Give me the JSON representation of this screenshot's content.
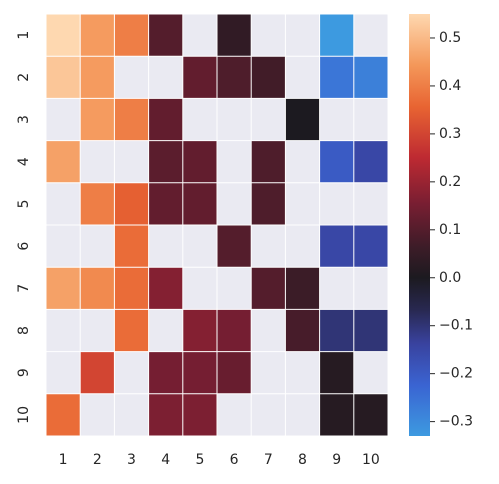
{
  "chart_data": {
    "type": "heatmap",
    "title": "",
    "xlabel": "",
    "ylabel": "",
    "x_categories": [
      "1",
      "2",
      "3",
      "4",
      "5",
      "6",
      "7",
      "8",
      "9",
      "10"
    ],
    "y_categories": [
      "1",
      "2",
      "3",
      "4",
      "5",
      "6",
      "7",
      "8",
      "9",
      "10"
    ],
    "values": [
      [
        0.55,
        0.45,
        0.4,
        0.1,
        null,
        0.04,
        null,
        null,
        -0.33,
        null
      ],
      [
        0.52,
        0.45,
        null,
        null,
        0.12,
        0.09,
        0.07,
        null,
        -0.26,
        -0.28
      ],
      [
        null,
        0.45,
        0.4,
        0.12,
        null,
        null,
        null,
        0.0,
        null,
        null
      ],
      [
        0.46,
        null,
        null,
        0.11,
        0.12,
        null,
        0.09,
        null,
        -0.2,
        -0.15
      ],
      [
        null,
        0.4,
        0.35,
        0.12,
        0.12,
        null,
        0.09,
        null,
        null,
        null
      ],
      [
        null,
        null,
        0.37,
        null,
        null,
        0.1,
        null,
        null,
        -0.15,
        -0.15
      ],
      [
        0.46,
        0.42,
        0.37,
        0.17,
        null,
        null,
        0.1,
        0.06,
        null,
        null
      ],
      [
        null,
        null,
        0.37,
        null,
        0.17,
        0.15,
        null,
        0.08,
        -0.1,
        -0.1
      ],
      [
        null,
        0.3,
        null,
        0.15,
        0.15,
        0.13,
        null,
        null,
        0.02,
        null
      ],
      [
        0.37,
        null,
        null,
        0.16,
        0.16,
        null,
        null,
        null,
        0.02,
        0.02
      ]
    ],
    "colorbar": {
      "min": -0.33,
      "max": 0.55,
      "ticks": [
        0.5,
        0.4,
        0.3,
        0.2,
        0.1,
        0.0,
        -0.1,
        -0.2,
        -0.3
      ],
      "tick_labels": [
        "0.5",
        "0.4",
        "0.3",
        "0.2",
        "0.1",
        "0.0",
        "−0.1",
        "−0.2",
        "−0.3"
      ]
    },
    "missing_color": "#eaeaf2",
    "grid_line_color": "#ffffff",
    "colormap": "icefire",
    "grid": true
  }
}
